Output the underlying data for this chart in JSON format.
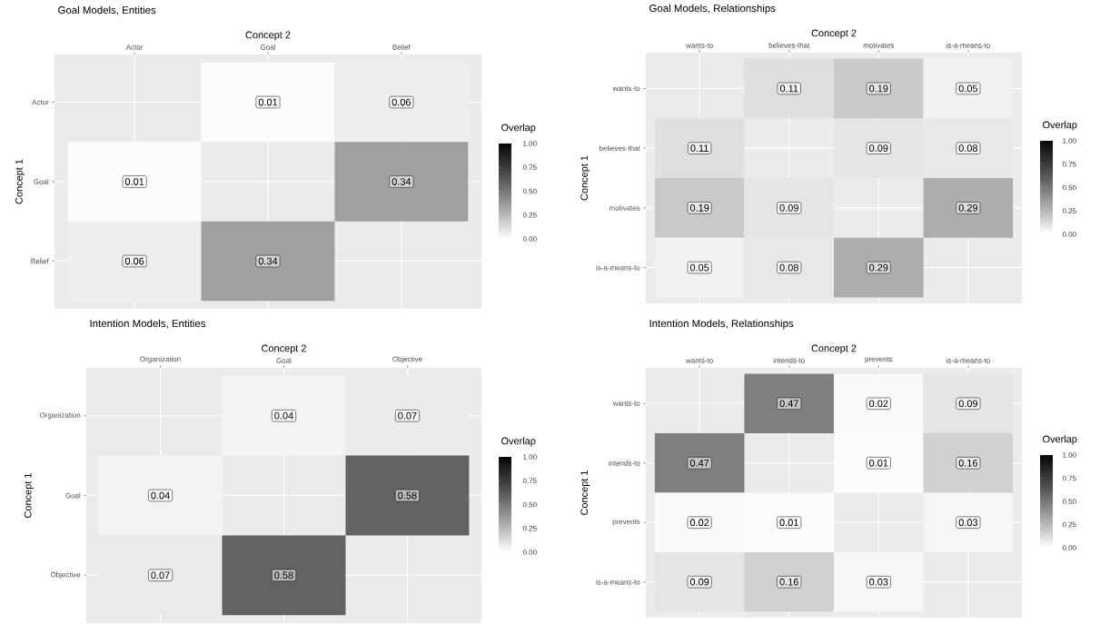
{
  "chart_data": [
    {
      "type": "heatmap",
      "title": "Goal Models, Entities",
      "xlabel": "Concept 2",
      "ylabel": "Concept 1",
      "clabel": "Overlap",
      "categories": [
        "Actor",
        "Goal",
        "Belief"
      ],
      "y_categories": [
        "Actor",
        "Goal",
        "Belief"
      ],
      "cells": [
        [
          null,
          0.01,
          0.06
        ],
        [
          0.01,
          null,
          0.34
        ],
        [
          0.06,
          0.34,
          null
        ]
      ],
      "clim": [
        0,
        1
      ],
      "cticks": [
        {
          "value": 0,
          "label": "0.00"
        },
        {
          "value": 0.25,
          "label": "0.25"
        },
        {
          "value": 0.5,
          "label": "0.50"
        },
        {
          "value": 0.75,
          "label": "0.75"
        },
        {
          "value": 1,
          "label": "1.00"
        }
      ],
      "data_labels": true,
      "grid": true
    },
    {
      "type": "heatmap",
      "title": "Goal Models, Relationships",
      "xlabel": "Concept 2",
      "ylabel": "Concept 1",
      "clabel": "Overlap",
      "categories": [
        "wants-to",
        "believes-that",
        "motivates",
        "is-a-means-to"
      ],
      "y_categories": [
        "wants-to",
        "believes-that",
        "motivates",
        "is-a-means-to"
      ],
      "cells": [
        [
          null,
          0.11,
          0.19,
          0.05
        ],
        [
          0.11,
          null,
          0.09,
          0.08
        ],
        [
          0.19,
          0.09,
          null,
          0.29
        ],
        [
          0.05,
          0.08,
          0.29,
          null
        ]
      ],
      "clim": [
        0,
        1
      ],
      "cticks": [
        {
          "value": 0,
          "label": "0.00"
        },
        {
          "value": 0.25,
          "label": "0.25"
        },
        {
          "value": 0.5,
          "label": "0.50"
        },
        {
          "value": 0.75,
          "label": "0.75"
        },
        {
          "value": 1,
          "label": "1.00"
        }
      ],
      "data_labels": true,
      "grid": true
    },
    {
      "type": "heatmap",
      "title": "Intention Models, Entities",
      "xlabel": "Concept 2",
      "ylabel": "Concept 1",
      "clabel": "Overlap",
      "categories": [
        "Organization",
        "Goal",
        "Objective"
      ],
      "y_categories": [
        "Organization",
        "Goal",
        "Objective"
      ],
      "cells": [
        [
          null,
          0.04,
          0.07
        ],
        [
          0.04,
          null,
          0.58
        ],
        [
          0.07,
          0.58,
          null
        ]
      ],
      "clim": [
        0,
        1
      ],
      "cticks": [
        {
          "value": 0,
          "label": "0.00"
        },
        {
          "value": 0.25,
          "label": "0.25"
        },
        {
          "value": 0.5,
          "label": "0.50"
        },
        {
          "value": 0.75,
          "label": "0.75"
        },
        {
          "value": 1,
          "label": "1.00"
        }
      ],
      "data_labels": true,
      "grid": true
    },
    {
      "type": "heatmap",
      "title": "Intention Models, Relationships",
      "xlabel": "Concept 2",
      "ylabel": "Concept 1",
      "clabel": "Overlap",
      "categories": [
        "wants-to",
        "intends-to",
        "prevents",
        "is-a-means-to"
      ],
      "y_categories": [
        "wants-to",
        "intends-to",
        "prevents",
        "is-a-means-to"
      ],
      "cells": [
        [
          null,
          0.47,
          0.02,
          0.09
        ],
        [
          0.47,
          null,
          0.01,
          0.16
        ],
        [
          0.02,
          0.01,
          null,
          0.03
        ],
        [
          0.09,
          0.16,
          0.03,
          null
        ]
      ],
      "clim": [
        0,
        1
      ],
      "cticks": [
        {
          "value": 0,
          "label": "0.00"
        },
        {
          "value": 0.25,
          "label": "0.25"
        },
        {
          "value": 0.5,
          "label": "0.50"
        },
        {
          "value": 0.75,
          "label": "0.75"
        },
        {
          "value": 1,
          "label": "1.00"
        }
      ],
      "data_labels": true,
      "grid": true
    }
  ]
}
